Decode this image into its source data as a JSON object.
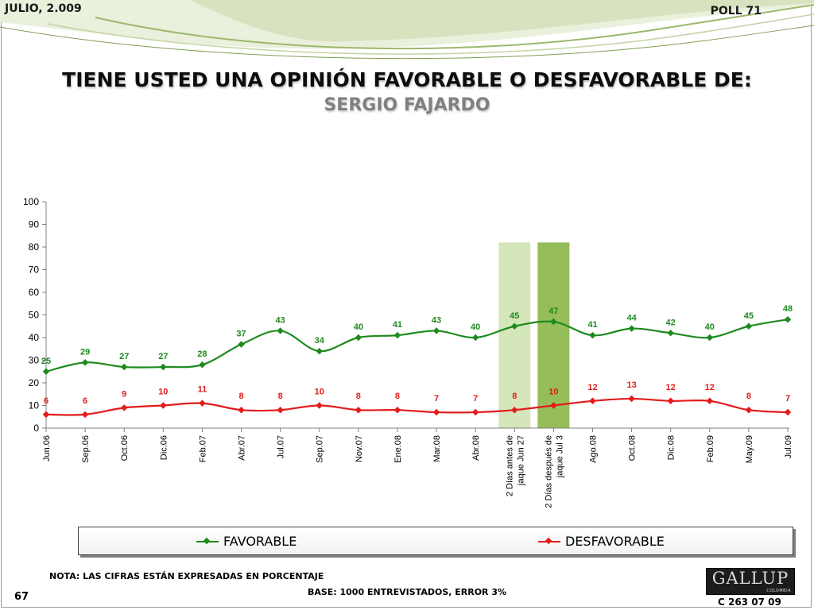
{
  "header": {
    "date": "JULIO, 2.009",
    "poll": "POLL 71",
    "title": "TIENE USTED UNA OPINIÓN FAVORABLE O DESFAVORABLE DE:",
    "subtitle": "SERGIO FAJARDO"
  },
  "colors": {
    "favorable": "#1e8a1e",
    "desfavorable": "#e31b1b",
    "highlight_light": "#d5e6bb",
    "highlight_dark": "#95bd59"
  },
  "chart_data": {
    "type": "line",
    "categories": [
      "Jun.06",
      "Sep.06",
      "Oct.06",
      "Dic.06",
      "Feb.07",
      "Abr.07",
      "Jul.07",
      "Sep.07",
      "Nov.07",
      "Ene.08",
      "Mar.08",
      "Abr.08",
      "2 Días antes de jaque Jun 27",
      "2 Días después de jaque Jul 3",
      "Ago.08",
      "Oct.08",
      "Dic.08",
      "Feb.09",
      "May.09",
      "Jul.09"
    ],
    "series": [
      {
        "name": "FAVORABLE",
        "values": [
          25,
          29,
          27,
          27,
          28,
          37,
          43,
          34,
          40,
          41,
          43,
          40,
          45,
          47,
          41,
          44,
          42,
          40,
          45,
          48
        ]
      },
      {
        "name": "DESFAVORABLE",
        "values": [
          6,
          6,
          9,
          10,
          11,
          8,
          8,
          10,
          8,
          8,
          7,
          7,
          8,
          10,
          12,
          13,
          12,
          12,
          8,
          7
        ]
      }
    ],
    "ylim": [
      0,
      100
    ],
    "yticks": [
      0,
      10,
      20,
      30,
      40,
      50,
      60,
      70,
      80,
      90,
      100
    ],
    "highlighted_categories": [
      12,
      13
    ],
    "grid": false,
    "legend_position": "bottom"
  },
  "legend": {
    "favorable_label": "FAVORABLE",
    "desfavorable_label": "DESFAVORABLE"
  },
  "footer": {
    "note": "NOTA: LAS CIFRAS ESTÁN EXPRESADAS EN PORCENTAJE",
    "base": "BASE: 1000 ENTREVISTADOS, ERROR 3%",
    "slide_number": "67",
    "logo_word": "GALLUP",
    "logo_country": "COLOMBIA",
    "code": "C 263 07 09"
  }
}
